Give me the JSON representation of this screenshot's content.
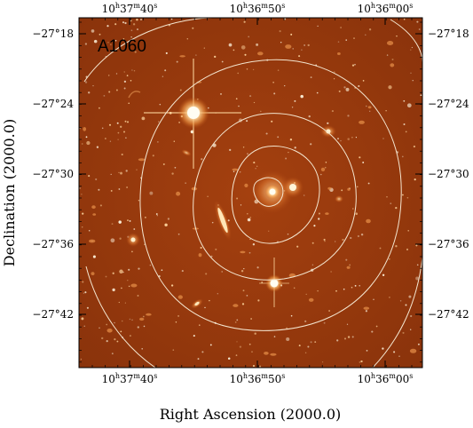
{
  "figure": {
    "field_label": "A1060",
    "x_axis_title": "Right Ascension (2000.0)",
    "y_axis_title": "Declination (2000.0)",
    "ra_ticks": [
      {
        "h": "10",
        "m": "37",
        "s": "40"
      },
      {
        "h": "10",
        "m": "36",
        "s": "50"
      },
      {
        "h": "10",
        "m": "36",
        "s": "00"
      }
    ],
    "dec_ticks": [
      "−27°18",
      "−27°24",
      "−27°30",
      "−27°36",
      "−27°42"
    ],
    "colors": {
      "sky": "#9a3a0c",
      "sky_edge": "#6e2306",
      "contour": "#f4e6d0",
      "star": "#fff6e0",
      "galaxy": "#ffd7a0",
      "frame": "#000000"
    },
    "contour_levels": 5
  }
}
